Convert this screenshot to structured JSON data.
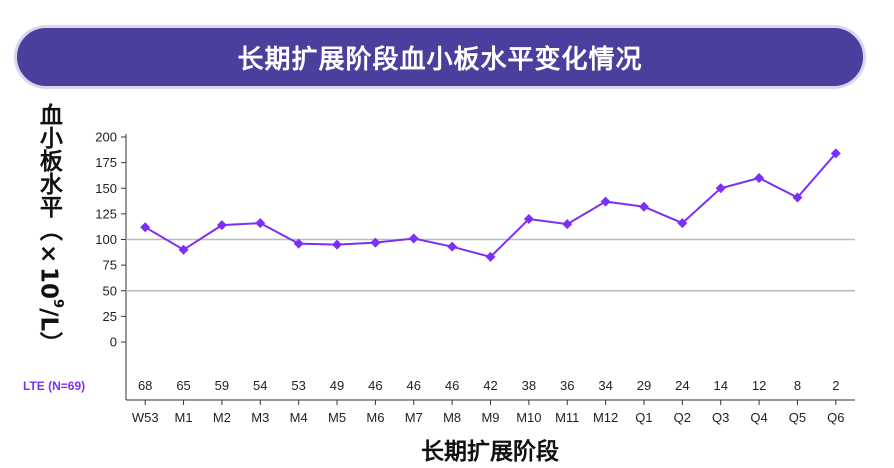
{
  "title": "长期扩展阶段血小板水平变化情况",
  "ylabel": {
    "main": "血小板水平（×10",
    "sup": "9",
    "tail": "/L）"
  },
  "xlabel": "长期扩展阶段",
  "row_label": "LTE (N=69)",
  "colors": {
    "line": "#7b2ff7",
    "banner": "#4b3f9e",
    "ref_line": "#bbbbbb"
  },
  "chart_data": {
    "type": "line",
    "title": "长期扩展阶段血小板水平变化情况",
    "xlabel": "长期扩展阶段",
    "ylabel": "血小板水平（×10⁹/L）",
    "categories": [
      "W53",
      "M1",
      "M2",
      "M3",
      "M4",
      "M5",
      "M6",
      "M7",
      "M8",
      "M9",
      "M10",
      "M11",
      "M12",
      "Q1",
      "Q2",
      "Q3",
      "Q4",
      "Q5",
      "Q6"
    ],
    "series": [
      {
        "values": [
          112,
          90,
          114,
          116,
          96,
          95,
          97,
          101,
          93,
          83,
          120,
          115,
          137,
          132,
          116,
          150,
          160,
          141,
          184
        ]
      }
    ],
    "n_row_label": "LTE (N=69)",
    "n_values": [
      68,
      65,
      59,
      54,
      53,
      49,
      46,
      46,
      46,
      42,
      38,
      36,
      34,
      29,
      24,
      14,
      12,
      8,
      2
    ],
    "yticks": [
      0,
      25,
      50,
      75,
      100,
      125,
      150,
      175,
      200
    ],
    "ylim": [
      0,
      200
    ],
    "reference_lines": [
      50,
      100
    ],
    "grid": false
  }
}
